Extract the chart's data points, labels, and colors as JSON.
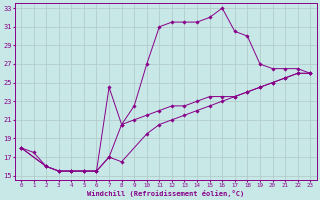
{
  "xlabel": "Windchill (Refroidissement éolien,°C)",
  "bg_color": "#c8e8e8",
  "grid_color": "#b0c8c8",
  "line_color": "#880088",
  "xlim": [
    -0.5,
    23.5
  ],
  "ylim": [
    14.5,
    33.5
  ],
  "xticks": [
    0,
    1,
    2,
    3,
    4,
    5,
    6,
    7,
    8,
    9,
    10,
    11,
    12,
    13,
    14,
    15,
    16,
    17,
    18,
    19,
    20,
    21,
    22,
    23
  ],
  "yticks": [
    15,
    17,
    19,
    21,
    23,
    25,
    27,
    29,
    31,
    33
  ],
  "series": [
    {
      "x": [
        0,
        1,
        2,
        3,
        4,
        5,
        6,
        7,
        8,
        9,
        10,
        11,
        12,
        13,
        14,
        15,
        16,
        17,
        18,
        19,
        20,
        21,
        22,
        23
      ],
      "y": [
        18,
        17.5,
        16,
        15.5,
        15.5,
        15.5,
        15.5,
        17,
        20.5,
        22.5,
        27,
        31,
        31.5,
        31.5,
        31.5,
        32,
        33,
        30.5,
        30,
        27,
        26.5,
        26.5,
        26.5,
        26
      ]
    },
    {
      "x": [
        0,
        2,
        3,
        4,
        5,
        6,
        7,
        8,
        9,
        10,
        11,
        12,
        13,
        14,
        15,
        16,
        17,
        18,
        19,
        20,
        21,
        22,
        23
      ],
      "y": [
        18,
        16,
        15.5,
        15.5,
        15.5,
        15.5,
        24.5,
        20.5,
        21,
        21.5,
        22,
        22.5,
        22.5,
        23,
        23.5,
        23.5,
        23.5,
        24,
        24.5,
        25,
        25.5,
        26,
        26
      ]
    },
    {
      "x": [
        0,
        2,
        3,
        4,
        5,
        6,
        7,
        8,
        10,
        11,
        12,
        13,
        14,
        15,
        16,
        17,
        18,
        19,
        20,
        21,
        22,
        23
      ],
      "y": [
        18,
        16,
        15.5,
        15.5,
        15.5,
        15.5,
        17,
        16.5,
        19.5,
        20.5,
        21,
        21.5,
        22,
        22.5,
        23,
        23.5,
        24,
        24.5,
        25,
        25.5,
        26,
        26
      ]
    }
  ]
}
